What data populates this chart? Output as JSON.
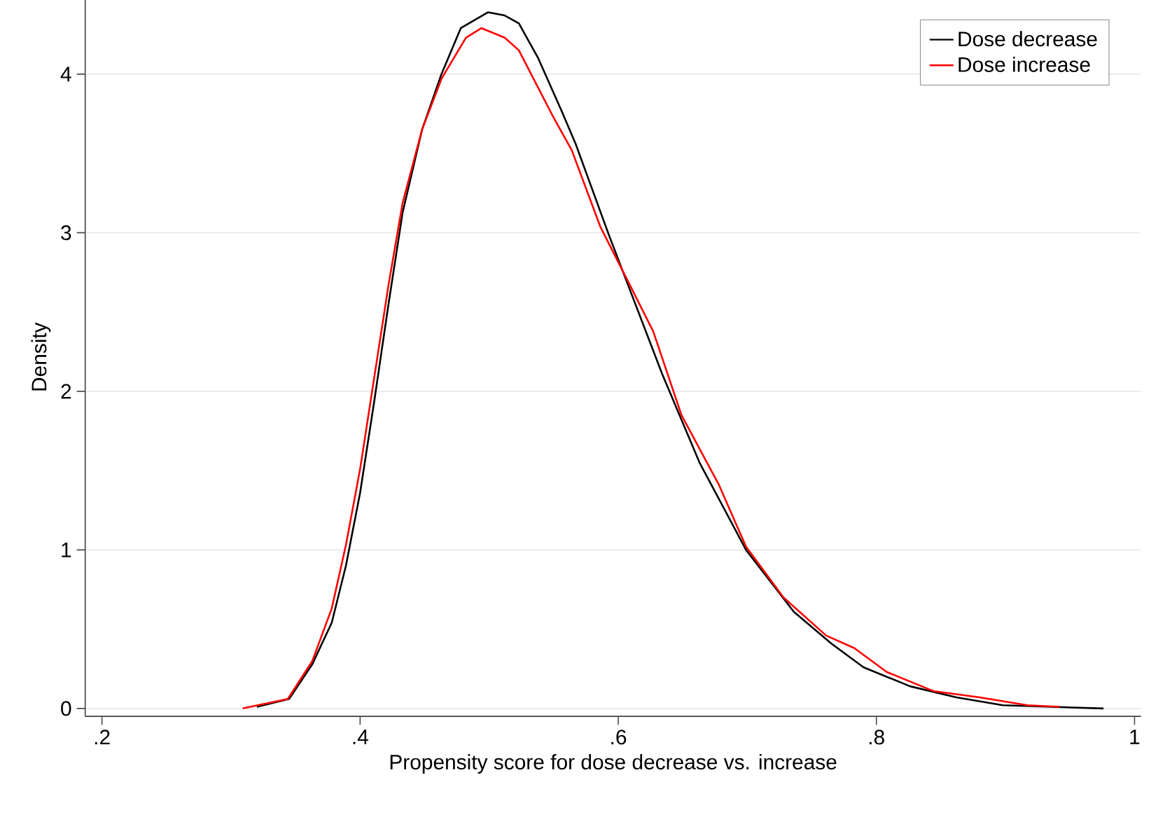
{
  "chart_data": {
    "type": "line",
    "xlabel": "Propensity score for dose decrease vs. increase",
    "ylabel": "Density",
    "xlim": [
      0.187,
      1.005
    ],
    "ylim": [
      -0.05,
      4.48
    ],
    "xticks": [
      {
        "value": 0.2,
        "label": ".2"
      },
      {
        "value": 0.4,
        "label": ".4"
      },
      {
        "value": 0.6,
        "label": ".6"
      },
      {
        "value": 0.8,
        "label": ".8"
      },
      {
        "value": 1,
        "label": "1"
      }
    ],
    "yticks": [
      0,
      1,
      2,
      3,
      4
    ],
    "grid": "y",
    "legend": "top right",
    "marker": "none",
    "line_style": "solid",
    "series": [
      {
        "name": "Dose decrease",
        "color": "#000000",
        "x": [
          0.32,
          0.345,
          0.363,
          0.378,
          0.389,
          0.4,
          0.411,
          0.422,
          0.433,
          0.448,
          0.463,
          0.478,
          0.499,
          0.512,
          0.523,
          0.538,
          0.556,
          0.567,
          0.593,
          0.634,
          0.663,
          0.699,
          0.736,
          0.765,
          0.79,
          0.826,
          0.862,
          0.898,
          0.976
        ],
        "values": [
          0.01,
          0.06,
          0.28,
          0.54,
          0.9,
          1.36,
          1.94,
          2.55,
          3.13,
          3.65,
          4.0,
          4.29,
          4.39,
          4.37,
          4.32,
          4.1,
          3.77,
          3.56,
          2.98,
          2.11,
          1.55,
          1.0,
          0.61,
          0.41,
          0.26,
          0.14,
          0.07,
          0.02,
          0
        ]
      },
      {
        "name": "Dose increase",
        "color": "#ff0000",
        "x": [
          0.309,
          0.344,
          0.363,
          0.378,
          0.389,
          0.4,
          0.411,
          0.422,
          0.433,
          0.448,
          0.463,
          0.482,
          0.494,
          0.512,
          0.523,
          0.549,
          0.564,
          0.586,
          0.609,
          0.627,
          0.649,
          0.678,
          0.699,
          0.728,
          0.761,
          0.783,
          0.808,
          0.844,
          0.88,
          0.917,
          0.942
        ],
        "values": [
          0,
          0.06,
          0.3,
          0.63,
          1.03,
          1.51,
          2.09,
          2.67,
          3.19,
          3.65,
          3.97,
          4.23,
          4.29,
          4.23,
          4.15,
          3.74,
          3.52,
          3.04,
          2.67,
          2.38,
          1.85,
          1.41,
          1.02,
          0.7,
          0.46,
          0.38,
          0.23,
          0.11,
          0.07,
          0.02,
          0.01
        ]
      }
    ]
  }
}
